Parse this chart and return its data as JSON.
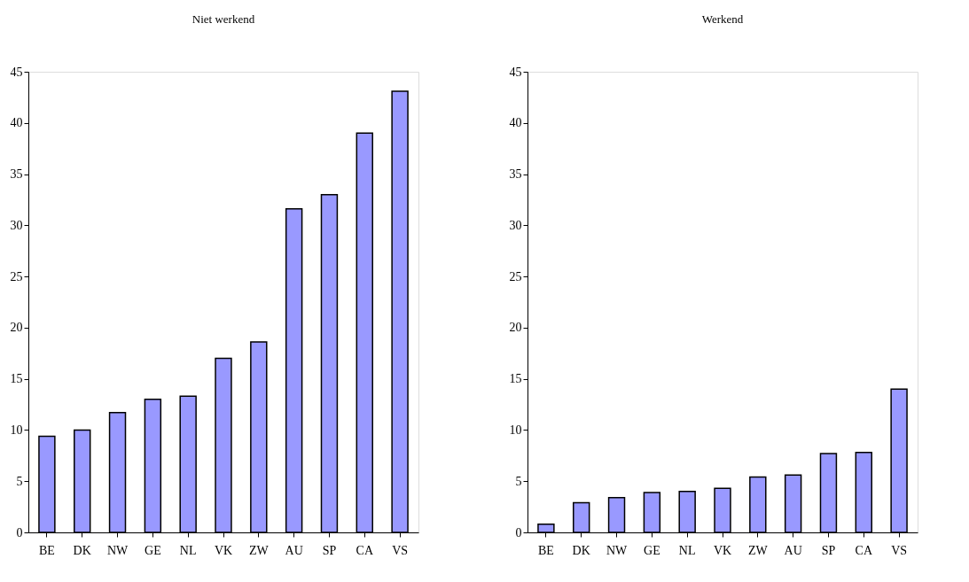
{
  "chart_data": [
    {
      "type": "bar",
      "title": "Niet werkend",
      "categories": [
        "BE",
        "DK",
        "NW",
        "GE",
        "NL",
        "VK",
        "ZW",
        "AU",
        "SP",
        "CA",
        "VS"
      ],
      "series": [
        {
          "color": "#9999ff",
          "values": [
            9.4,
            10,
            11.7,
            13,
            13.3,
            17,
            18.6,
            31.6,
            33,
            39,
            43.1
          ]
        }
      ],
      "ylim": [
        0,
        45
      ],
      "yticks": [
        0,
        5,
        10,
        15,
        20,
        25,
        30,
        35,
        40,
        45
      ],
      "grid": false
    },
    {
      "type": "bar",
      "title": "Werkend",
      "categories": [
        "BE",
        "DK",
        "NW",
        "GE",
        "NL",
        "VK",
        "ZW",
        "AU",
        "SP",
        "CA",
        "VS"
      ],
      "series": [
        {
          "color": "#9999ff",
          "values": [
            0.8,
            2.9,
            3.4,
            3.9,
            4,
            4.3,
            5.4,
            5.6,
            7.7,
            7.8,
            14
          ]
        }
      ],
      "ylim": [
        0,
        45
      ],
      "yticks": [
        0,
        5,
        10,
        15,
        20,
        25,
        30,
        35,
        40,
        45
      ],
      "grid": false
    }
  ]
}
